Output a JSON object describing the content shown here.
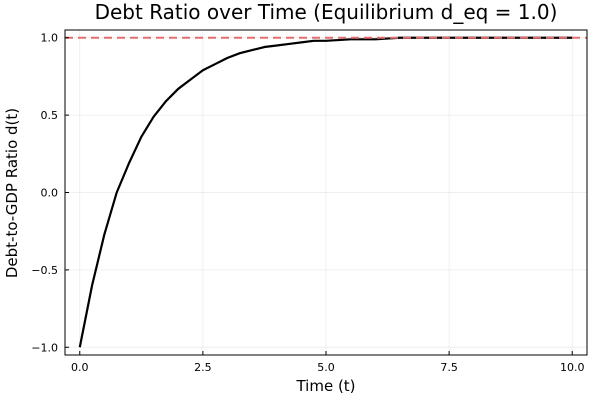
{
  "chart_data": {
    "type": "line",
    "title": "Debt Ratio over Time (Equilibrium d_eq = 1.0)",
    "xlabel": "Time (t)",
    "ylabel": "Debt-to-GDP Ratio d(t)",
    "xlim": [
      -0.3,
      10.3
    ],
    "ylim": [
      -1.05,
      1.05
    ],
    "x_ticks": [
      0.0,
      2.5,
      5.0,
      7.5,
      10.0
    ],
    "x_tick_labels": [
      "0.0",
      "2.5",
      "5.0",
      "7.5",
      "10.0"
    ],
    "y_ticks": [
      -1.0,
      -0.5,
      0.0,
      0.5,
      1.0
    ],
    "y_tick_labels": [
      "−1.0",
      "−0.5",
      "0.0",
      "0.5",
      "1.0"
    ],
    "grid": true,
    "series": [
      {
        "style": "solid",
        "color": "#000000",
        "x": [
          0,
          0.25,
          0.5,
          0.75,
          1.0,
          1.25,
          1.5,
          1.75,
          2.0,
          2.25,
          2.5,
          2.75,
          3.0,
          3.25,
          3.5,
          3.75,
          4.0,
          4.25,
          4.5,
          4.75,
          5.0,
          5.5,
          6.0,
          6.5,
          7.0,
          7.5,
          8.0,
          8.5,
          9.0,
          9.5,
          10.0
        ],
        "y": [
          -1.0,
          -0.6,
          -0.27,
          0.0,
          0.19,
          0.36,
          0.49,
          0.59,
          0.67,
          0.73,
          0.79,
          0.83,
          0.87,
          0.9,
          0.92,
          0.94,
          0.95,
          0.96,
          0.97,
          0.98,
          0.98,
          0.99,
          0.99,
          1.0,
          1.0,
          1.0,
          1.0,
          1.0,
          1.0,
          1.0,
          1.0
        ]
      },
      {
        "style": "dashed",
        "color": "#e26f6f",
        "x": [
          -0.3,
          10.3
        ],
        "y": [
          1.0,
          1.0
        ]
      }
    ]
  }
}
